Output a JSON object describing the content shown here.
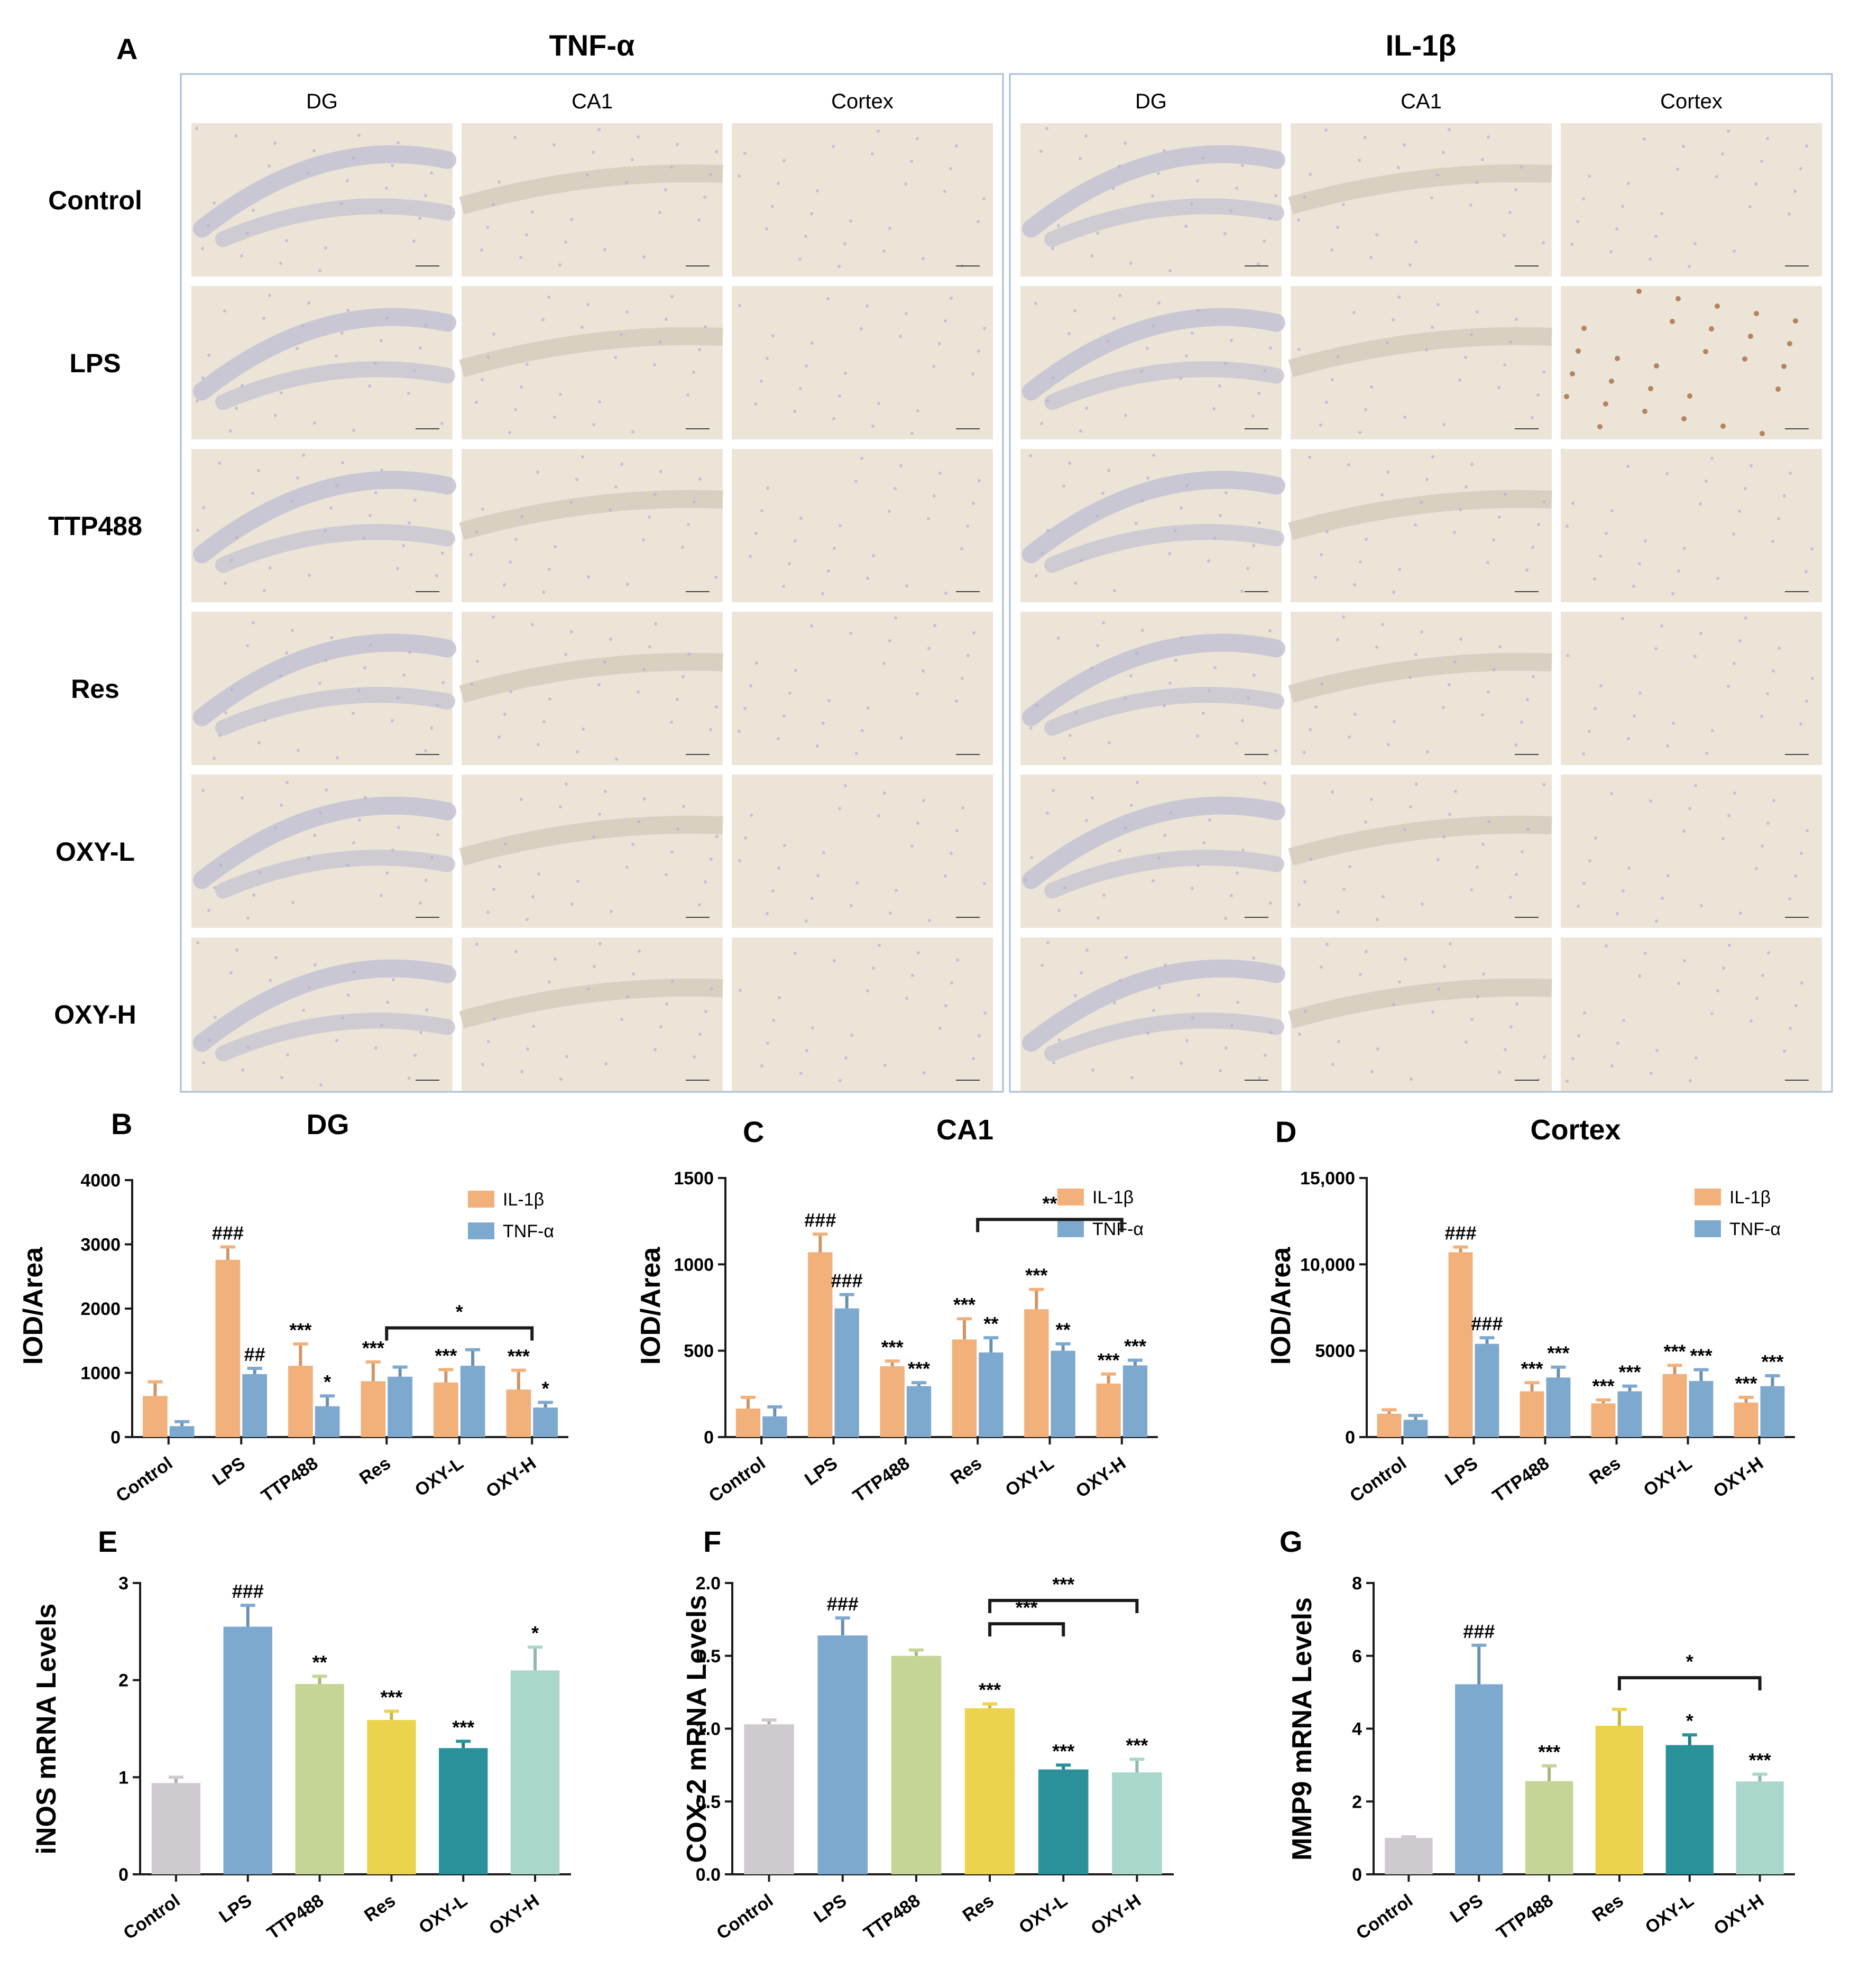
{
  "panelA": {
    "letter": "A",
    "headings": [
      "TNF-α",
      "IL-1β"
    ],
    "columns": [
      "DG",
      "CA1",
      "Cortex"
    ],
    "rows": [
      "Control",
      "LPS",
      "TTP488",
      "Res",
      "OXY-L",
      "OXY-H"
    ]
  },
  "colors": {
    "il1b": "#f2b07a",
    "tnfa": "#7ea9cf",
    "control": "#cfcacf",
    "lps": "#7ea9cf",
    "ttp488": "#c5d595",
    "res": "#ecd34e",
    "oxyl": "#2a919a",
    "oxyh": "#a9d7cb",
    "tissue": "#ece4d7"
  },
  "chart_data": [
    {
      "id": "B",
      "type": "bar",
      "letter": "B",
      "title": "DG",
      "xlabel": "",
      "ylabel": "IOD/Area",
      "categories": [
        "Control",
        "LPS",
        "TTP488",
        "Res",
        "OXY-L",
        "OXY-H"
      ],
      "ylim": [
        0,
        4000
      ],
      "yticks": [
        "0",
        "1000",
        "2000",
        "3000",
        "4000"
      ],
      "ytick_values": [
        0,
        1000,
        2000,
        3000,
        4000
      ],
      "legend": "top-right",
      "series": [
        {
          "name": "IL-1β",
          "values": [
            640,
            2760,
            1110,
            870,
            850,
            740
          ],
          "errors": [
            220,
            200,
            340,
            300,
            200,
            300
          ],
          "labels": [
            "",
            "###",
            "***",
            "***",
            "***",
            "***"
          ]
        },
        {
          "name": "TNF-α",
          "values": [
            170,
            980,
            480,
            940,
            1110,
            460
          ],
          "errors": [
            70,
            90,
            160,
            150,
            250,
            80
          ],
          "labels": [
            "",
            "##",
            "*",
            "",
            "",
            "*"
          ]
        }
      ],
      "brackets": [
        {
          "from": 3,
          "to": 5,
          "y": 1700,
          "label": "*"
        }
      ]
    },
    {
      "id": "C",
      "type": "bar",
      "letter": "C",
      "title": "CA1",
      "xlabel": "",
      "ylabel": "IOD/Area",
      "categories": [
        "Control",
        "LPS",
        "TTP488",
        "Res",
        "OXY-L",
        "OXY-H"
      ],
      "ylim": [
        0,
        1500
      ],
      "yticks": [
        "0",
        "500",
        "1000",
        "1500"
      ],
      "ytick_values": [
        0,
        500,
        1000,
        1500
      ],
      "legend": "top-right",
      "series": [
        {
          "name": "IL-1β",
          "values": [
            165,
            1070,
            410,
            565,
            740,
            310
          ],
          "errors": [
            65,
            105,
            30,
            120,
            115,
            55
          ],
          "labels": [
            "",
            "###",
            "***",
            "***",
            "***",
            "***"
          ]
        },
        {
          "name": "TNF-α",
          "values": [
            120,
            745,
            295,
            490,
            500,
            415
          ],
          "errors": [
            55,
            80,
            20,
            85,
            40,
            30
          ],
          "labels": [
            "",
            "###",
            "***",
            "**",
            "**",
            "***"
          ]
        }
      ],
      "brackets": [
        {
          "from": 3,
          "to": 5,
          "y": 1260,
          "label": "**"
        }
      ]
    },
    {
      "id": "D",
      "type": "bar",
      "letter": "D",
      "title": "Cortex",
      "xlabel": "",
      "ylabel": "IOD/Area",
      "categories": [
        "Control",
        "LPS",
        "TTP488",
        "Res",
        "OXY-L",
        "OXY-H"
      ],
      "ylim": [
        0,
        15000
      ],
      "yticks": [
        "0",
        "5000",
        "10,000",
        "15,000"
      ],
      "ytick_values": [
        0,
        5000,
        10000,
        15000
      ],
      "legend": "top-right",
      "series": [
        {
          "name": "IL-1β",
          "values": [
            1350,
            10700,
            2650,
            1950,
            3650,
            2000
          ],
          "errors": [
            230,
            300,
            500,
            200,
            500,
            300
          ],
          "labels": [
            "",
            "###",
            "***",
            "***",
            "***",
            "***"
          ]
        },
        {
          "name": "TNF-α",
          "values": [
            1000,
            5400,
            3450,
            2650,
            3250,
            2950
          ],
          "errors": [
            250,
            350,
            600,
            300,
            650,
            600
          ],
          "labels": [
            "",
            "###",
            "***",
            "***",
            "***",
            "***"
          ]
        }
      ],
      "brackets": []
    },
    {
      "id": "E",
      "type": "bar",
      "letter": "E",
      "title": "",
      "xlabel": "",
      "ylabel": "iNOS mRNA Levels",
      "categories": [
        "Control",
        "LPS",
        "TTP488",
        "Res",
        "OXY-L",
        "OXY-H"
      ],
      "ylim": [
        0,
        3
      ],
      "yticks": [
        "0",
        "1",
        "2",
        "3"
      ],
      "ytick_values": [
        0,
        1,
        2,
        3
      ],
      "values": [
        0.94,
        2.55,
        1.96,
        1.59,
        1.3,
        2.1
      ],
      "errors": [
        0.06,
        0.22,
        0.08,
        0.09,
        0.07,
        0.24
      ],
      "labels": [
        "",
        "###",
        "**",
        "***",
        "***",
        "*"
      ],
      "brackets": []
    },
    {
      "id": "F",
      "type": "bar",
      "letter": "F",
      "title": "",
      "xlabel": "",
      "ylabel": "COX-2 mRNA Levels",
      "categories": [
        "Control",
        "LPS",
        "TTP488",
        "Res",
        "OXY-L",
        "OXY-H"
      ],
      "ylim": [
        0,
        2.0
      ],
      "yticks": [
        "0.0",
        "0.5",
        "1.0",
        "1.5",
        "2.0"
      ],
      "ytick_values": [
        0,
        0.5,
        1.0,
        1.5,
        2.0
      ],
      "values": [
        1.03,
        1.64,
        1.5,
        1.14,
        0.72,
        0.7
      ],
      "errors": [
        0.03,
        0.12,
        0.04,
        0.03,
        0.03,
        0.09
      ],
      "labels": [
        "",
        "###",
        "",
        "***",
        "***",
        "***"
      ],
      "brackets": [
        {
          "from": 3,
          "to": 4,
          "y": 1.72,
          "label": "***"
        },
        {
          "from": 3,
          "to": 5,
          "y": 1.88,
          "label": "***"
        }
      ]
    },
    {
      "id": "G",
      "type": "bar",
      "letter": "G",
      "title": "",
      "xlabel": "",
      "ylabel": "MMP9 mRNA Levels",
      "categories": [
        "Control",
        "LPS",
        "TTP488",
        "Res",
        "OXY-L",
        "OXY-H"
      ],
      "ylim": [
        0,
        8
      ],
      "yticks": [
        "0",
        "2",
        "4",
        "6",
        "8"
      ],
      "ytick_values": [
        0,
        2,
        4,
        6,
        8
      ],
      "values": [
        1.0,
        5.22,
        2.56,
        4.08,
        3.55,
        2.55
      ],
      "errors": [
        0.03,
        1.07,
        0.42,
        0.45,
        0.28,
        0.2
      ],
      "labels": [
        "",
        "###",
        "***",
        "",
        "*",
        "***"
      ],
      "brackets": [
        {
          "from": 3,
          "to": 5,
          "y": 5.4,
          "label": "*"
        }
      ]
    }
  ]
}
